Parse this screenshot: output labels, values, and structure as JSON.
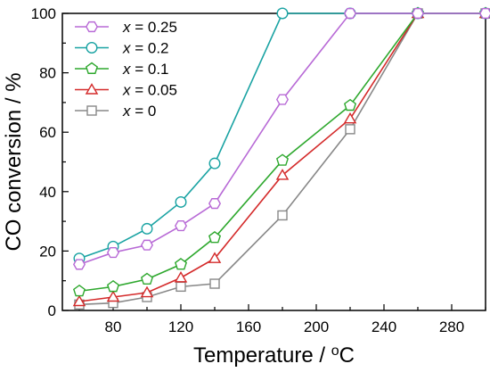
{
  "chart_data": {
    "type": "line",
    "xlabel": "Temperature / ",
    "xlabel_unit_sup": "o",
    "xlabel_unit": "C",
    "ylabel": "CO conversion / %",
    "xlim": [
      50,
      300
    ],
    "ylim": [
      0,
      100
    ],
    "xticks": [
      80,
      120,
      160,
      200,
      240,
      280
    ],
    "yticks": [
      0,
      20,
      40,
      60,
      80,
      100
    ],
    "grid": false,
    "legend_position": "top-left",
    "series": [
      {
        "legend_var": "x",
        "legend_rest": " = 0.25",
        "color": "#b86ad6",
        "marker": "hexagon",
        "x": [
          60,
          80,
          100,
          120,
          140,
          180,
          220,
          260,
          300
        ],
        "y": [
          15.5,
          19.5,
          22,
          28.5,
          36,
          71,
          100,
          100,
          100
        ]
      },
      {
        "legend_var": "x",
        "legend_rest": " = 0.2",
        "color": "#1aa3a3",
        "marker": "circle",
        "x": [
          60,
          80,
          100,
          120,
          140,
          180,
          220,
          260,
          300
        ],
        "y": [
          17.5,
          21.5,
          27.5,
          36.5,
          49.5,
          100,
          100,
          100,
          100
        ]
      },
      {
        "legend_var": "x",
        "legend_rest": " = 0.1",
        "color": "#2ea82e",
        "marker": "pentagon",
        "x": [
          60,
          80,
          100,
          120,
          140,
          180,
          220,
          260,
          300
        ],
        "y": [
          6.5,
          8,
          10.5,
          15.5,
          24.5,
          50.5,
          69,
          100,
          100
        ]
      },
      {
        "legend_var": "x",
        "legend_rest": " = 0.05",
        "color": "#d42a2a",
        "marker": "triangle",
        "x": [
          60,
          80,
          100,
          120,
          140,
          180,
          220,
          260,
          300
        ],
        "y": [
          3,
          4.5,
          6,
          11,
          17.5,
          45.5,
          64.5,
          100,
          100
        ]
      },
      {
        "legend_var": "x",
        "legend_rest": " = 0",
        "color": "#888888",
        "marker": "square",
        "x": [
          60,
          80,
          100,
          120,
          140,
          180,
          220,
          260,
          300
        ],
        "y": [
          2,
          2.5,
          4.5,
          8,
          9,
          32,
          61,
          100,
          100
        ]
      }
    ]
  }
}
